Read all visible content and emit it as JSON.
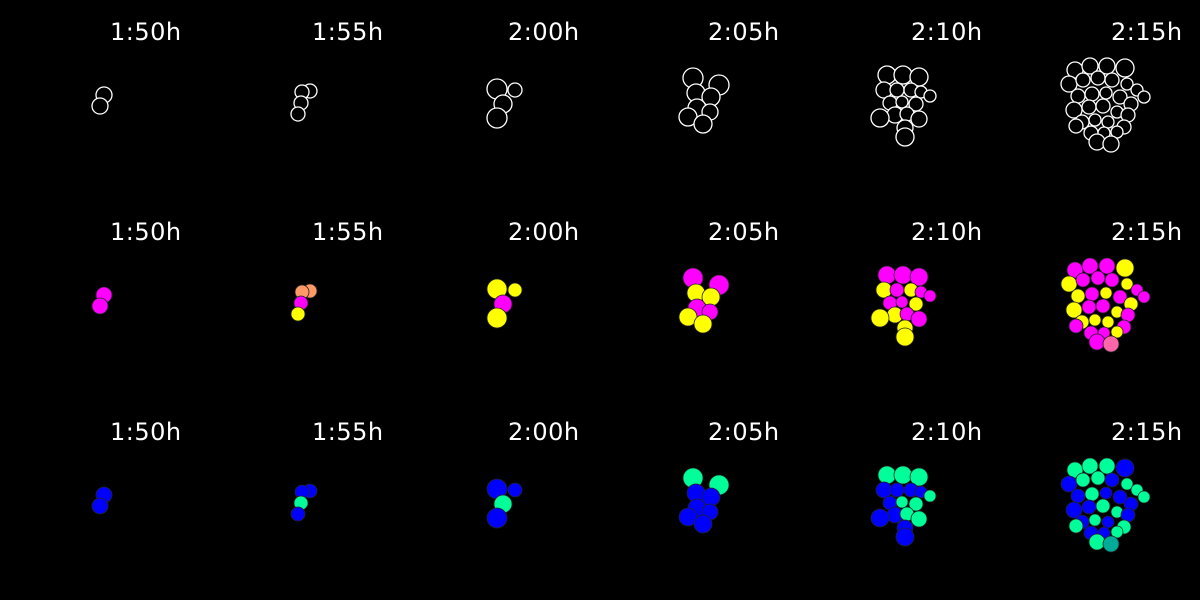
{
  "time_points": [
    "1:50h",
    "1:55h",
    "2:00h",
    "2:05h",
    "2:10h",
    "2:15h"
  ],
  "colors": {
    "background": "#000000",
    "outline": "#ffffff",
    "magenta": "#ff00ff",
    "yellow": "#ffff00",
    "salmon": "#ff9966",
    "pink": "#ff66aa",
    "blue": "#0000ff",
    "green": "#00ff99",
    "teal": "#00aa99"
  },
  "rows": [
    {
      "style": "outline"
    },
    {
      "style": "fill-a"
    },
    {
      "style": "fill-b"
    }
  ]
}
